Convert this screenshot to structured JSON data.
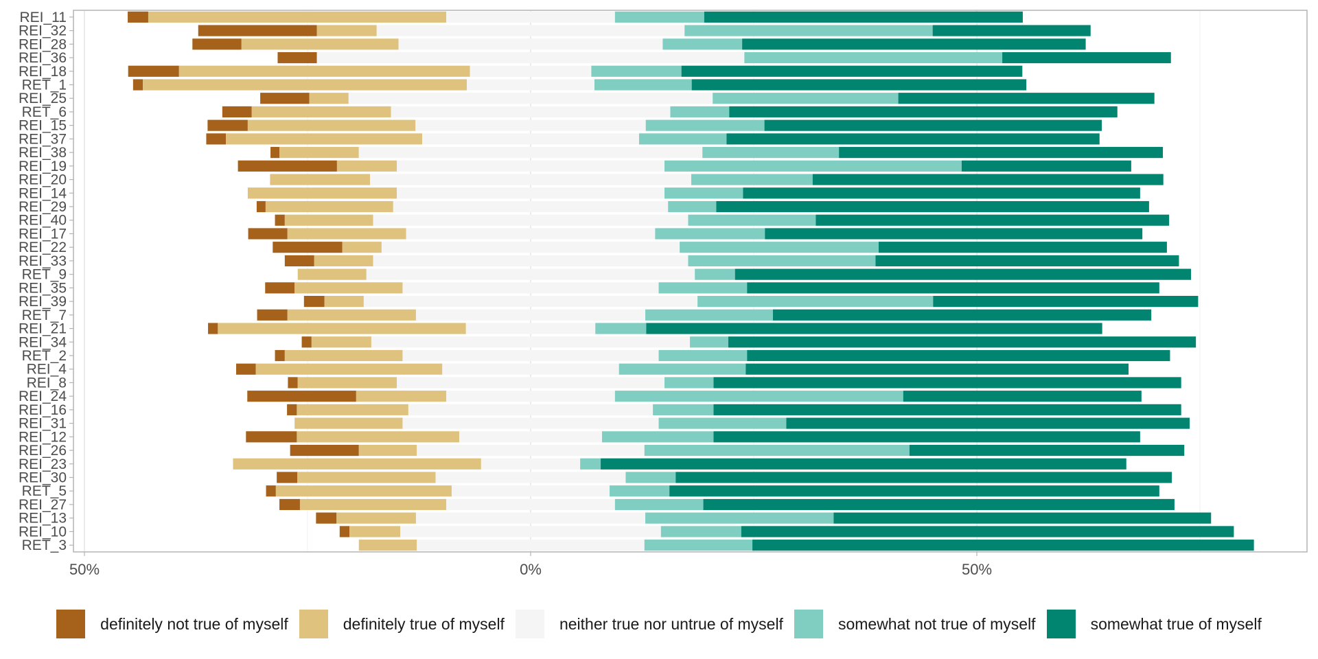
{
  "chart_data": {
    "type": "bar",
    "subtype": "diverging-stacked-likert",
    "title": "",
    "xlabel": "",
    "ylabel": "",
    "xlim": [
      -50,
      85
    ],
    "x_ticks": [
      -50,
      0,
      50
    ],
    "x_tick_labels": [
      "50%",
      "0%",
      "50%"
    ],
    "grid": true,
    "legend_position": "bottom",
    "categories": [
      "REI_11",
      "REI_32",
      "REI_28",
      "REI_36",
      "REI_18",
      "RET_1",
      "REI_25",
      "RET_6",
      "REI_15",
      "REI_37",
      "REI_38",
      "REI_19",
      "REI_20",
      "REI_14",
      "REI_29",
      "REI_40",
      "REI_17",
      "REI_22",
      "REI_33",
      "RET_9",
      "REI_35",
      "REI_39",
      "RET_7",
      "REI_21",
      "REI_34",
      "RET_2",
      "REI_4",
      "REI_8",
      "REI_24",
      "REI_16",
      "REI_31",
      "REI_12",
      "REI_26",
      "REI_23",
      "REI_30",
      "RET_5",
      "REI_27",
      "REI_13",
      "REI_10",
      "RET_3"
    ],
    "series": [
      {
        "name": "definitely not true of myself",
        "color": "#A6611A",
        "side": "negative-outer",
        "values": [
          2.3,
          13.3,
          5.5,
          4.4,
          5.7,
          1.1,
          5.5,
          3.3,
          4.5,
          2.2,
          1.0,
          11.1,
          0,
          0,
          1.0,
          1.1,
          4.4,
          7.8,
          3.3,
          0,
          3.3,
          2.3,
          3.4,
          1.1,
          1.1,
          1.1,
          2.2,
          1.1,
          12.2,
          1.1,
          0,
          5.7,
          7.7,
          0,
          2.3,
          1.1,
          2.3,
          2.3,
          1.1,
          0
        ]
      },
      {
        "name": "definitely true of myself",
        "color": "#DFC27D",
        "side": "negative-inner",
        "values": [
          33.4,
          6.7,
          17.6,
          0,
          32.6,
          36.3,
          4.4,
          15.6,
          18.8,
          22.0,
          8.9,
          6.7,
          11.2,
          16.7,
          14.3,
          9.9,
          13.3,
          4.4,
          6.6,
          7.7,
          12.1,
          4.4,
          14.4,
          27.8,
          6.7,
          13.2,
          20.9,
          11.1,
          10.1,
          12.5,
          12.1,
          18.2,
          6.5,
          27.8,
          15.5,
          19.7,
          16.4,
          8.9,
          5.7,
          6.5
        ]
      },
      {
        "name": "neither true nor untrue of myself",
        "color": "#F5F5F5",
        "side": "neutral",
        "values": [
          18.9,
          34.5,
          29.6,
          47.9,
          13.6,
          14.3,
          40.8,
          31.3,
          25.8,
          24.3,
          38.5,
          30.0,
          36.0,
          30.0,
          30.8,
          35.3,
          27.9,
          33.4,
          35.3,
          36.8,
          28.7,
          37.4,
          25.7,
          14.5,
          35.7,
          28.7,
          19.8,
          30.0,
          18.9,
          27.4,
          28.7,
          16.0,
          25.5,
          11.1,
          21.3,
          17.7,
          18.9,
          25.7,
          29.2,
          25.5
        ]
      },
      {
        "name": "somewhat not true of myself",
        "color": "#80CDC1",
        "side": "positive-inner",
        "values": [
          10.0,
          27.8,
          8.9,
          28.9,
          10.1,
          10.9,
          20.8,
          6.6,
          13.3,
          9.8,
          15.3,
          33.3,
          13.6,
          8.8,
          5.4,
          14.3,
          12.3,
          22.3,
          21.0,
          4.5,
          9.9,
          26.4,
          14.3,
          5.7,
          4.3,
          9.9,
          14.2,
          5.5,
          32.3,
          6.8,
          14.3,
          12.5,
          29.7,
          2.3,
          5.6,
          6.7,
          9.9,
          21.1,
          9.0,
          12.1
        ]
      },
      {
        "name": "somewhat true of myself",
        "color": "#018571",
        "side": "positive-outer",
        "values": [
          35.7,
          17.7,
          38.5,
          18.9,
          38.2,
          37.5,
          28.7,
          43.5,
          37.8,
          41.8,
          36.3,
          19.0,
          39.3,
          44.5,
          48.5,
          39.6,
          42.3,
          32.3,
          34.0,
          51.1,
          46.2,
          29.7,
          42.4,
          51.1,
          52.4,
          47.4,
          42.9,
          52.4,
          26.7,
          52.4,
          45.2,
          47.8,
          30.8,
          58.9,
          55.6,
          54.9,
          52.8,
          42.3,
          55.2,
          56.2
        ]
      }
    ]
  },
  "legend": {
    "items": [
      {
        "label": "definitely not true of myself",
        "color": "#A6611A"
      },
      {
        "label": "definitely true of myself",
        "color": "#DFC27D"
      },
      {
        "label": "neither true nor untrue of myself",
        "color": "#F5F5F5"
      },
      {
        "label": "somewhat not true of myself",
        "color": "#80CDC1"
      },
      {
        "label": "somewhat true of myself",
        "color": "#018571"
      }
    ]
  }
}
